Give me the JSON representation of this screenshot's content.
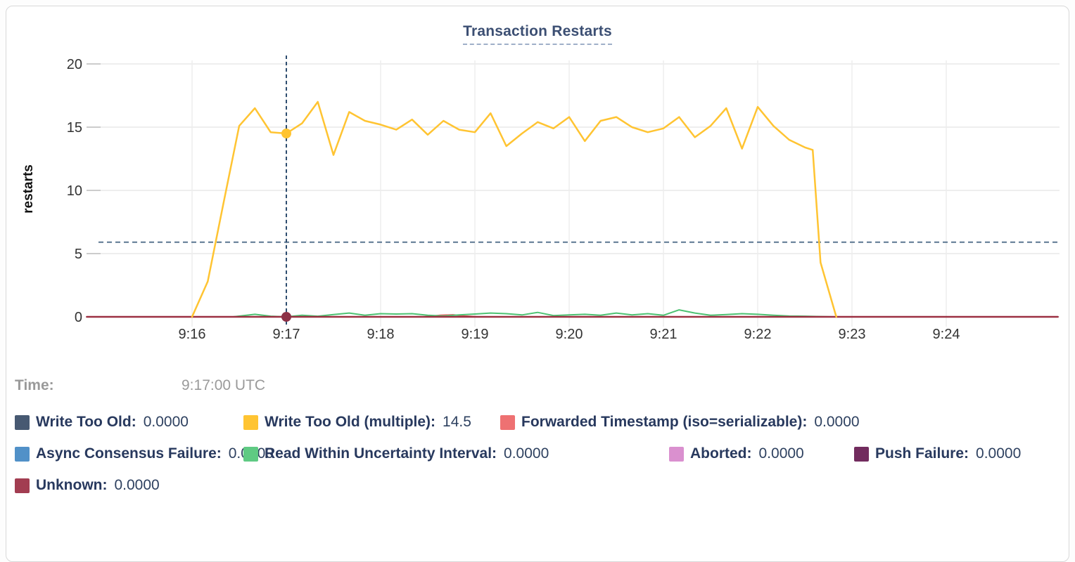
{
  "chart": {
    "title": "Transaction Restarts"
  },
  "hover": {
    "time_label": "Time:",
    "time_value": "9:17:00 UTC"
  },
  "chart_data": {
    "type": "line",
    "title": "Transaction Restarts",
    "xlabel": "",
    "ylabel": "restarts",
    "ylim": [
      0,
      20
    ],
    "y_ticks": [
      0,
      5,
      10,
      15,
      20
    ],
    "x_ticks": [
      "9:16",
      "9:17",
      "9:18",
      "9:19",
      "9:20",
      "9:21",
      "9:22",
      "9:23",
      "9:24"
    ],
    "x_unit": "seconds since 9:16:00 UTC",
    "grid": true,
    "average_line_value": 5.9,
    "crosshair": {
      "t": 60,
      "time": "9:17:00 UTC",
      "points": [
        {
          "series_index": 1,
          "value": 14.5
        },
        {
          "series_index": 7,
          "value": 0
        }
      ]
    },
    "series": [
      {
        "name": "Write Too Old",
        "color": "#475972",
        "line_color": "#475972",
        "legend_value": "0.0000",
        "points": []
      },
      {
        "name": "Write Too Old (multiple)",
        "color": "#ffc432",
        "line_color": "#ffc432",
        "legend_value": "14.5",
        "points": [
          [
            0,
            0
          ],
          [
            10,
            2.8
          ],
          [
            20,
            9.0
          ],
          [
            30,
            15.1
          ],
          [
            40,
            16.5
          ],
          [
            50,
            14.6
          ],
          [
            60,
            14.5
          ],
          [
            70,
            15.3
          ],
          [
            80,
            17.0
          ],
          [
            90,
            12.8
          ],
          [
            100,
            16.2
          ],
          [
            110,
            15.5
          ],
          [
            120,
            15.2
          ],
          [
            130,
            14.8
          ],
          [
            140,
            15.6
          ],
          [
            150,
            14.4
          ],
          [
            160,
            15.5
          ],
          [
            170,
            14.8
          ],
          [
            180,
            14.6
          ],
          [
            190,
            16.1
          ],
          [
            200,
            13.5
          ],
          [
            210,
            14.5
          ],
          [
            220,
            15.4
          ],
          [
            230,
            14.9
          ],
          [
            240,
            15.8
          ],
          [
            250,
            13.9
          ],
          [
            260,
            15.5
          ],
          [
            270,
            15.8
          ],
          [
            280,
            15.0
          ],
          [
            290,
            14.6
          ],
          [
            300,
            14.9
          ],
          [
            310,
            15.8
          ],
          [
            320,
            14.2
          ],
          [
            330,
            15.1
          ],
          [
            340,
            16.5
          ],
          [
            350,
            13.3
          ],
          [
            360,
            16.6
          ],
          [
            370,
            15.1
          ],
          [
            380,
            14.0
          ],
          [
            390,
            13.4
          ],
          [
            395,
            13.2
          ],
          [
            400,
            4.3
          ],
          [
            410,
            0
          ]
        ]
      },
      {
        "name": "Forwarded Timestamp (iso=serializable)",
        "color": "#ee7172",
        "line_color": "#e25c5c",
        "legend_value": "0.0000",
        "points": [
          [
            148,
            0
          ],
          [
            158,
            0.12
          ],
          [
            166,
            0.16
          ],
          [
            174,
            0.06
          ],
          [
            182,
            0
          ]
        ]
      },
      {
        "name": "Async Consensus Failure",
        "color": "#5191c8",
        "line_color": "#5191c8",
        "legend_value": "0.0000",
        "points": []
      },
      {
        "name": "Read Within Uncertainty Interval",
        "color": "#5fca83",
        "line_color": "#4ec273",
        "legend_value": "0.0000",
        "points": [
          [
            26,
            0
          ],
          [
            40,
            0.2
          ],
          [
            50,
            0.05
          ],
          [
            60,
            0
          ],
          [
            70,
            0.12
          ],
          [
            80,
            0.05
          ],
          [
            90,
            0.18
          ],
          [
            100,
            0.3
          ],
          [
            110,
            0.12
          ],
          [
            120,
            0.25
          ],
          [
            130,
            0.22
          ],
          [
            140,
            0.25
          ],
          [
            150,
            0.12
          ],
          [
            160,
            0.06
          ],
          [
            170,
            0.15
          ],
          [
            180,
            0.22
          ],
          [
            190,
            0.3
          ],
          [
            200,
            0.25
          ],
          [
            210,
            0.15
          ],
          [
            220,
            0.35
          ],
          [
            230,
            0.1
          ],
          [
            240,
            0.15
          ],
          [
            250,
            0.2
          ],
          [
            260,
            0.12
          ],
          [
            270,
            0.3
          ],
          [
            280,
            0.15
          ],
          [
            290,
            0.25
          ],
          [
            300,
            0.12
          ],
          [
            310,
            0.55
          ],
          [
            320,
            0.3
          ],
          [
            330,
            0.12
          ],
          [
            340,
            0.18
          ],
          [
            350,
            0.25
          ],
          [
            360,
            0.2
          ],
          [
            370,
            0.12
          ],
          [
            380,
            0.06
          ],
          [
            390,
            0.05
          ],
          [
            400,
            0.02
          ],
          [
            408,
            0
          ]
        ]
      },
      {
        "name": "Aborted",
        "color": "#da90cf",
        "line_color": "#da90cf",
        "legend_value": "0.0000",
        "points": []
      },
      {
        "name": "Push Failure",
        "color": "#722c5e",
        "line_color": "#722c5e",
        "legend_value": "0.0000",
        "points": []
      },
      {
        "name": "Unknown",
        "color": "#a23d51",
        "line_color": "#9c3042",
        "legend_value": "0.0000",
        "points": [
          [
            -67,
            0
          ],
          [
            551,
            0
          ]
        ]
      }
    ],
    "draw_order": [
      2,
      4,
      7,
      1
    ],
    "legend_rows": [
      [
        0,
        1,
        2
      ],
      [
        3,
        4,
        5,
        6
      ],
      [
        7
      ]
    ],
    "colors": {
      "grid_h": "#e8e8e8",
      "grid_v": "#ededed",
      "tick_stub": "#cccccc",
      "average_line": "#5b7791",
      "crosshair": "#2e4d6f",
      "hover_dot_bottom": "#8c3147"
    }
  }
}
